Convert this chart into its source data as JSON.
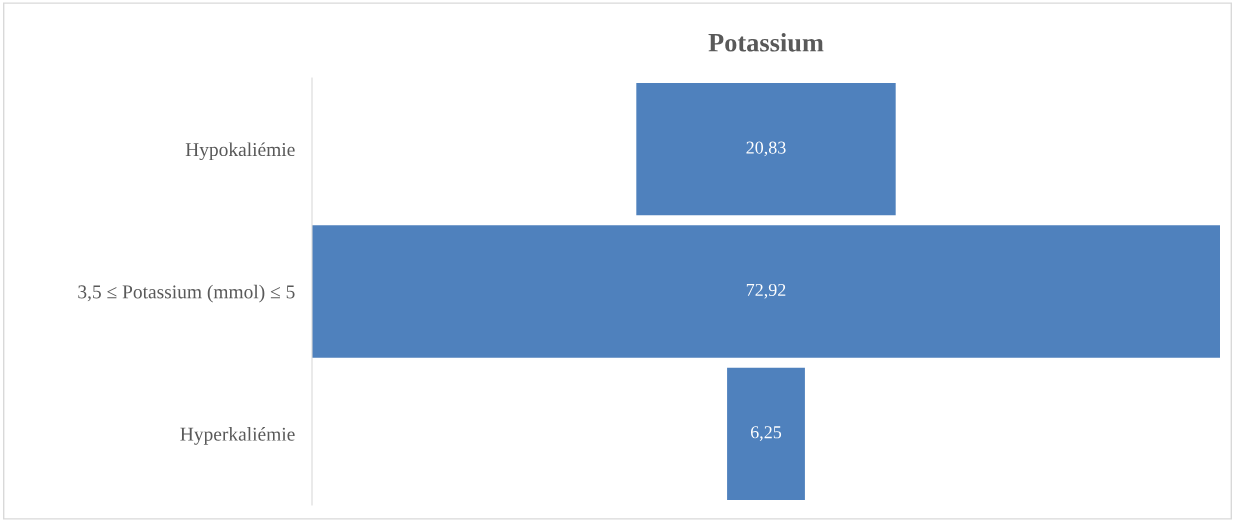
{
  "chart_data": {
    "type": "other",
    "title": "Potassium",
    "categories": [
      "Hypokaliémie",
      "3,5 ≤ Potassium (mmol) ≤ 5",
      "Hyperkaliémie"
    ],
    "values": [
      20.83,
      72.92,
      6.25
    ],
    "value_labels": [
      "20,83",
      "72,92",
      "6,25"
    ],
    "color": "#4f81bd"
  }
}
